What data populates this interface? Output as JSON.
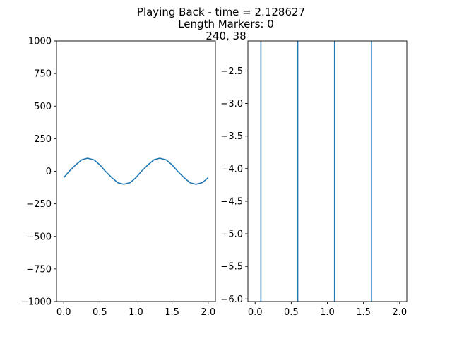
{
  "figure": {
    "title_lines": [
      "Playing Back - time = 2.128627",
      "Length Markers: 0",
      "240, 38"
    ],
    "line_color": "#1f77b4"
  },
  "chart_data": [
    {
      "type": "line",
      "title": "",
      "xlabel": "",
      "ylabel": "",
      "xlim": [
        -0.1,
        2.1
      ],
      "ylim": [
        -1000,
        1000
      ],
      "x_ticks": [
        0.0,
        0.5,
        1.0,
        1.5,
        2.0
      ],
      "x_tick_labels": [
        "0.0",
        "0.5",
        "1.0",
        "1.5",
        "2.0"
      ],
      "y_ticks": [
        1000,
        750,
        500,
        250,
        0,
        -250,
        -500,
        -750,
        -1000
      ],
      "y_tick_labels": [
        "1000",
        "750",
        "500",
        "250",
        "0",
        "−250",
        "−500",
        "−750",
        "−1000"
      ],
      "grid": false,
      "series": [
        {
          "x": [
            0.0,
            0.08,
            0.17,
            0.25,
            0.33,
            0.42,
            0.5,
            0.58,
            0.67,
            0.75,
            0.83,
            0.92,
            1.0,
            1.08,
            1.17,
            1.25,
            1.33,
            1.42,
            1.5,
            1.58,
            1.67,
            1.75,
            1.83,
            1.92,
            2.0
          ],
          "y": [
            -49,
            2,
            51,
            88,
            100,
            87,
            49,
            -2,
            -51,
            -88,
            -100,
            -87,
            -49,
            2,
            51,
            88,
            100,
            87,
            49,
            -2,
            -51,
            -88,
            -100,
            -87,
            -49
          ]
        }
      ]
    },
    {
      "type": "line",
      "title": "",
      "xlabel": "",
      "ylabel": "",
      "xlim": [
        -0.1,
        2.1
      ],
      "ylim": [
        -6.04,
        -2.04
      ],
      "x_ticks": [
        0.0,
        0.5,
        1.0,
        1.5,
        2.0
      ],
      "x_tick_labels": [
        "0.0",
        "0.5",
        "1.0",
        "1.5",
        "2.0"
      ],
      "y_ticks": [
        -2.5,
        -3.0,
        -3.5,
        -4.0,
        -4.5,
        -5.0,
        -5.5,
        -6.0
      ],
      "y_tick_labels": [
        "−2.5",
        "−3.0",
        "−3.5",
        "−4.0",
        "−4.5",
        "−5.0",
        "−5.5",
        "−6.0"
      ],
      "grid": false,
      "series": [
        {
          "x": [
            0.08,
            0.08
          ],
          "y": [
            -6.04,
            -2.04
          ]
        },
        {
          "x": [
            0.59,
            0.59
          ],
          "y": [
            -6.04,
            -2.04
          ]
        },
        {
          "x": [
            1.1,
            1.1
          ],
          "y": [
            -6.04,
            -2.04
          ]
        },
        {
          "x": [
            1.61,
            1.61
          ],
          "y": [
            -6.04,
            -2.04
          ]
        }
      ]
    }
  ]
}
